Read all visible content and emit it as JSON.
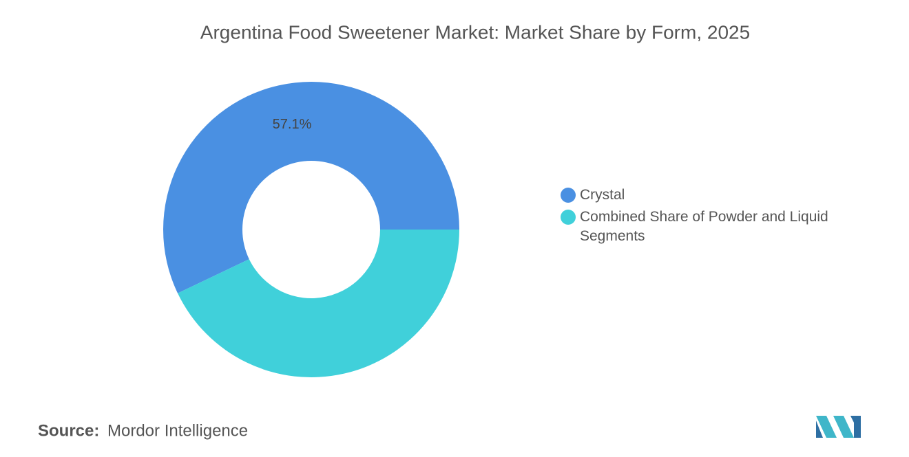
{
  "chart_data": {
    "type": "pie",
    "title": "Argentina Food Sweetener Market: Market Share by Form, 2025",
    "categories": [
      "Crystal",
      "Combined Share of Powder and Liquid Segments"
    ],
    "values": [
      57.1,
      42.9
    ],
    "value_labels": [
      "57.1%",
      null
    ],
    "colors": [
      "#4a90e2",
      "#40d0da"
    ]
  },
  "source": {
    "label": "Source:",
    "text": "Mordor Intelligence"
  }
}
